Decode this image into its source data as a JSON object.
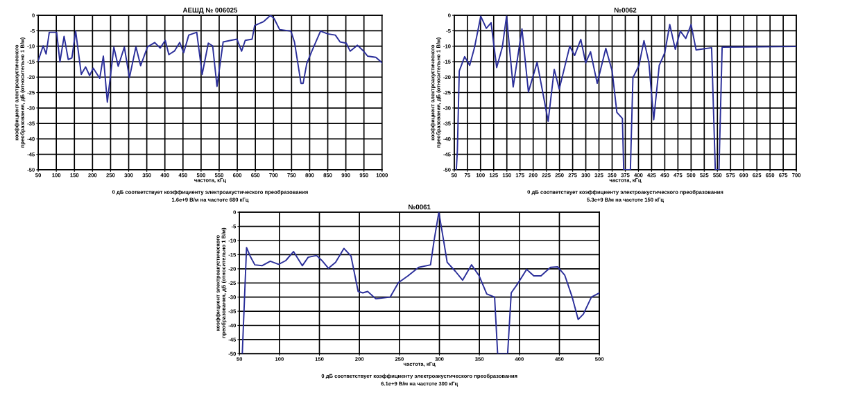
{
  "chart_data": [
    {
      "type": "line",
      "title": "АЕШД № 006025",
      "xlabel": "частота, кГц",
      "ylabel": "коэффициент электроакустического\nпреобразования, дБ (относительно 1 В/м)",
      "annotations": [
        "0 дБ соответствует коэффициенту электроакустического преобразования",
        "1.6e+9 В/м на частоте 680 кГц"
      ],
      "xlim": [
        50,
        1000
      ],
      "xticks": [
        50,
        100,
        150,
        200,
        250,
        300,
        350,
        400,
        450,
        500,
        550,
        600,
        650,
        700,
        750,
        800,
        850,
        900,
        950,
        1000
      ],
      "ylim": [
        -50,
        0
      ],
      "yticks": [
        0,
        -5,
        -10,
        -15,
        -20,
        -25,
        -30,
        -35,
        -40,
        -45,
        -50
      ],
      "grid": true,
      "series": [
        {
          "color": "#2b2f9a",
          "x": [
            50,
            63.6,
            71.8,
            80.6,
            101,
            110,
            121.5,
            133,
            143,
            153.5,
            169,
            181,
            192,
            202,
            220,
            230,
            241,
            259,
            271,
            288,
            302,
            320,
            333,
            352,
            372,
            387,
            401,
            411,
            427,
            441,
            452,
            466,
            488,
            503,
            520,
            532,
            544,
            561,
            582,
            599,
            612,
            622,
            641,
            648,
            673,
            692,
            702,
            717,
            748,
            758,
            776,
            782,
            792,
            806,
            830,
            850,
            871,
            884,
            901,
            912,
            932,
            949,
            960,
            983,
            1000
          ],
          "values": [
            -14.7,
            -9.9,
            -12.5,
            -5.5,
            -5.5,
            -15.1,
            -6.8,
            -14.3,
            -13.8,
            -5.1,
            -19.1,
            -16.7,
            -19.5,
            -17.1,
            -20.4,
            -13.2,
            -28.1,
            -10.3,
            -16.5,
            -10.3,
            -20.2,
            -10.2,
            -16.3,
            -10.2,
            -8.8,
            -10.6,
            -8.1,
            -12.7,
            -11.5,
            -8.8,
            -12.1,
            -6.4,
            -5.5,
            -19.1,
            -9.0,
            -9.9,
            -23.0,
            -8.6,
            -8.1,
            -7.7,
            -11.6,
            -8.1,
            -7.7,
            -3.3,
            -2.0,
            0,
            -1.1,
            -4.6,
            -5.1,
            -8.6,
            -22.0,
            -22.0,
            -15.6,
            -11.6,
            -5.1,
            -6.0,
            -6.4,
            -8.6,
            -9.0,
            -11.6,
            -9.7,
            -11.6,
            -13.2,
            -13.6,
            -15.4
          ]
        }
      ]
    },
    {
      "type": "line",
      "title": "№0062",
      "xlabel": "частота, кГц",
      "ylabel": "коэффициент электроакустического\nпреобразования, дБ (относительно 1 В/м)",
      "annotations": [
        "0 дБ соответствует коэффициенту электроакустического преобразования",
        "5.3e+9 В/м на частоте 150 кГц"
      ],
      "xlim": [
        50,
        700
      ],
      "xticks": [
        50,
        75,
        100,
        125,
        150,
        175,
        200,
        225,
        250,
        275,
        300,
        325,
        350,
        375,
        400,
        425,
        450,
        475,
        500,
        525,
        550,
        575,
        600,
        625,
        650,
        675,
        700
      ],
      "ylim": [
        -50,
        0
      ],
      "yticks": [
        0,
        -5,
        -10,
        -15,
        -20,
        -25,
        -30,
        -35,
        -40,
        -45,
        -50
      ],
      "grid": true,
      "series": [
        {
          "color": "#2b2f9a",
          "x": [
            54,
            56,
            59.6,
            69.8,
            79.4,
            88.7,
            100.4,
            111,
            120,
            130.7,
            141.4,
            149.4,
            162,
            178.7,
            191,
            207.5,
            228.5,
            240,
            249.5,
            269.5,
            278.7,
            290.5,
            299.7,
            309,
            321.6,
            338,
            350,
            359,
            369.5,
            372,
            384.7,
            389.5,
            401,
            410.5,
            419.8,
            429,
            439.5,
            450,
            459.5,
            470,
            479.6,
            489.8,
            500,
            509.5,
            539,
            546,
            553,
            559,
            700
          ],
          "values": [
            -50,
            -43.8,
            -18.0,
            -13.4,
            -16.2,
            -10.3,
            -0.3,
            -4.2,
            -2.4,
            -16.9,
            -10.3,
            -0.3,
            -23.2,
            -4.4,
            -24.8,
            -15.2,
            -34.3,
            -17.5,
            -23.9,
            -10.0,
            -13.0,
            -7.8,
            -15.4,
            -11.8,
            -22.0,
            -10.7,
            -18.0,
            -31.4,
            -33.4,
            -50,
            -50,
            -20.2,
            -16.2,
            -8.2,
            -15.2,
            -33.8,
            -16.2,
            -12.1,
            -3.0,
            -11.0,
            -5.1,
            -7.5,
            -3.0,
            -11.2,
            -10.5,
            -50,
            -50,
            -10.3,
            -10.1
          ]
        }
      ]
    },
    {
      "type": "line",
      "title": "№0061",
      "xlabel": "частота, кГц",
      "ylabel": "коэффициент электроакустического\nпреобразования, дБ (относительно 1 В/м)",
      "annotations": [
        "0 дБ соответствует коэффициенту электроакустического преобразования",
        "6.1e+9 В/м на частоте 300 кГц"
      ],
      "xlim": [
        50,
        500
      ],
      "xticks": [
        50,
        100,
        150,
        200,
        250,
        300,
        350,
        400,
        450,
        500
      ],
      "ylim": [
        -50,
        0
      ],
      "yticks": [
        0,
        -5,
        -10,
        -15,
        -20,
        -25,
        -30,
        -35,
        -40,
        -45,
        -50
      ],
      "grid": true,
      "series": [
        {
          "color": "#2b2f9a",
          "x": [
            53.6,
            58.9,
            63.4,
            69.3,
            78.2,
            88.6,
            99,
            107.9,
            117.7,
            128.6,
            136,
            146.4,
            153.9,
            161.3,
            170.2,
            180.6,
            189.5,
            198.4,
            204.3,
            210.3,
            220.6,
            238.4,
            248.8,
            260.7,
            274,
            288.9,
            293.3,
            299.3,
            305.3,
            309.7,
            320,
            329,
            340.2,
            349.7,
            359.2,
            369,
            372.8,
            385.3,
            389.8,
            398.7,
            409,
            418,
            427,
            438.8,
            447.7,
            456.6,
            466,
            473.5,
            480,
            490,
            500
          ],
          "values": [
            -50,
            -12.5,
            -15.5,
            -18.6,
            -18.9,
            -17.3,
            -18.4,
            -17.1,
            -13.9,
            -18.9,
            -15.9,
            -15.3,
            -17.3,
            -19.8,
            -17.7,
            -12.8,
            -15.5,
            -28.0,
            -28.5,
            -28.0,
            -30.6,
            -30.0,
            -24.9,
            -22.5,
            -19.5,
            -18.6,
            -10.1,
            0,
            -10.1,
            -17.7,
            -20.9,
            -24.0,
            -18.6,
            -22.5,
            -28.9,
            -30.0,
            -50,
            -50,
            -28.5,
            -24.9,
            -20.2,
            -22.5,
            -22.5,
            -19.5,
            -19.3,
            -22.2,
            -30,
            -37.9,
            -36,
            -30,
            -28.5
          ]
        }
      ]
    }
  ]
}
